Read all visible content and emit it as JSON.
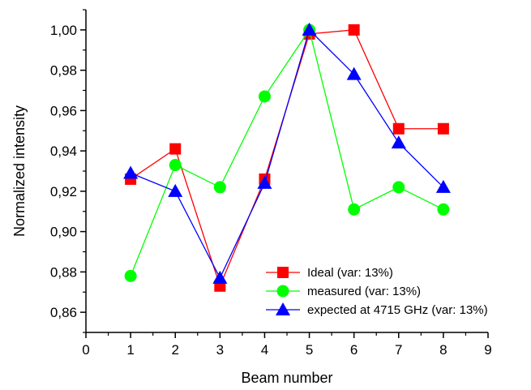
{
  "chart_data": {
    "type": "line",
    "xlabel": "Beam number",
    "ylabel": "Normalized intensity",
    "xlim": [
      0,
      9
    ],
    "ylim": [
      0.85,
      1.01
    ],
    "xticks": [
      "0",
      "1",
      "2",
      "3",
      "4",
      "5",
      "6",
      "7",
      "8",
      "9"
    ],
    "yticks": [
      "0,86",
      "0,88",
      "0,90",
      "0,92",
      "0,94",
      "0,96",
      "0,98",
      "1,00"
    ],
    "grid": false,
    "legend_position": "bottom-right",
    "series": [
      {
        "name": "Ideal (var: 13%)",
        "color": "#ff0000",
        "marker": "square",
        "x": [
          1,
          2,
          3,
          4,
          5,
          6,
          7,
          8
        ],
        "y": [
          0.926,
          0.941,
          0.873,
          0.926,
          0.998,
          1.0,
          0.951,
          0.951
        ]
      },
      {
        "name": "measured (var: 13%)",
        "color": "#00ff00",
        "marker": "circle",
        "x": [
          1,
          2,
          3,
          4,
          5,
          6,
          7,
          8
        ],
        "y": [
          0.878,
          0.933,
          0.922,
          0.967,
          1.0,
          0.911,
          0.922,
          0.911
        ]
      },
      {
        "name": "expected at 4715 GHz (var: 13%)",
        "color": "#0000ff",
        "marker": "triangle",
        "x": [
          1,
          2,
          3,
          4,
          5,
          6,
          7,
          8
        ],
        "y": [
          0.929,
          0.92,
          0.877,
          0.924,
          1.0,
          0.978,
          0.944,
          0.922
        ]
      }
    ]
  }
}
